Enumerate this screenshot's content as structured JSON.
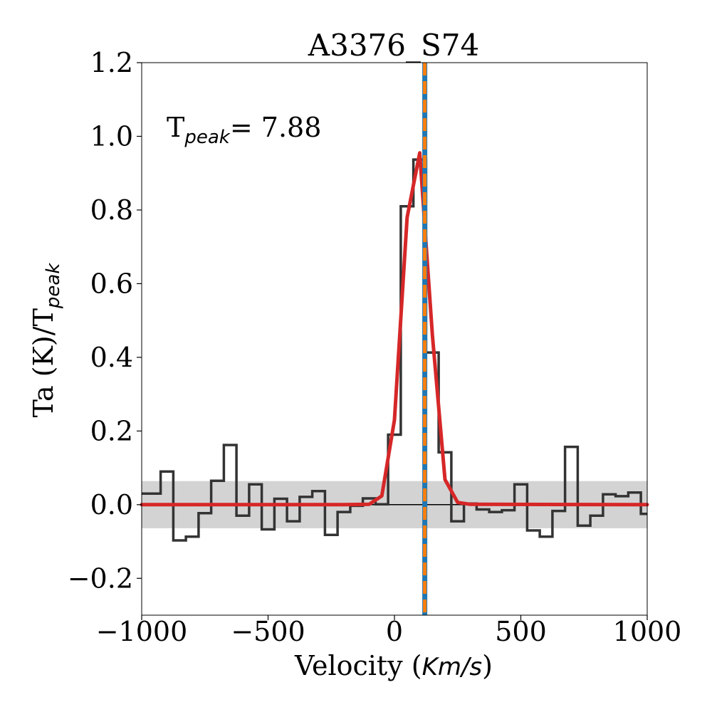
{
  "chart_data": {
    "type": "line",
    "title": "A3376_S74",
    "xlabel": "Velocity",
    "xlabel_unit": "Km/s",
    "ylabel": "Ta (K)/T",
    "ylabel_sub": "peak",
    "annotation": {
      "prefix": "T",
      "sub": "peak",
      "value": "= 7.88"
    },
    "xlim": [
      -1000,
      1000
    ],
    "ylim": [
      -0.3,
      1.2
    ],
    "xticks": [
      -1000,
      -500,
      0,
      500,
      1000
    ],
    "xtick_labels": [
      "−1000",
      "−500",
      "0",
      "500",
      "1000"
    ],
    "yticks": [
      -0.2,
      0.0,
      0.2,
      0.4,
      0.6,
      0.8,
      1.0,
      1.2
    ],
    "ytick_labels": [
      "−0.2",
      "0.0",
      "0.2",
      "0.4",
      "0.6",
      "0.8",
      "1.0",
      "1.2"
    ],
    "rms_band": [
      -0.064,
      0.064
    ],
    "vline_velocity": 120,
    "colors": {
      "spectrum": "#333333",
      "fit": "#d62728",
      "band": "#d3d3d3",
      "vline_solid": "#1f77b4",
      "vline_dashed": "#ff7f0e",
      "zero_line": "#000000"
    },
    "series": [
      {
        "name": "spectrum",
        "style": "steps-mid",
        "x": [
          -1000,
          -950,
          -900,
          -850,
          -800,
          -750,
          -700,
          -650,
          -600,
          -550,
          -500,
          -450,
          -400,
          -350,
          -300,
          -250,
          -200,
          -150,
          -100,
          -50,
          0,
          50,
          100,
          150,
          200,
          250,
          300,
          350,
          400,
          450,
          500,
          550,
          600,
          650,
          700,
          750,
          800,
          850,
          900,
          950,
          1000
        ],
        "y": [
          0.03,
          0.03,
          0.09,
          -0.097,
          -0.087,
          -0.023,
          0.065,
          0.162,
          -0.03,
          0.055,
          -0.067,
          0.016,
          -0.045,
          0.021,
          0.037,
          -0.082,
          -0.02,
          -0.003,
          0.017,
          0.001,
          0.19,
          0.81,
          0.937,
          0.413,
          0.142,
          -0.045,
          0.003,
          -0.013,
          -0.02,
          -0.015,
          0.055,
          -0.07,
          -0.087,
          -0.017,
          0.157,
          -0.057,
          -0.03,
          0.028,
          0.023,
          0.033,
          -0.025
        ]
      },
      {
        "name": "gaussian fit",
        "style": "line",
        "x": [
          -1000,
          -200,
          -100,
          -50,
          0,
          50,
          100,
          150,
          200,
          250,
          300,
          1000
        ],
        "y": [
          0.0,
          0.0,
          0.001,
          0.024,
          0.23,
          0.78,
          0.955,
          0.46,
          0.068,
          0.006,
          0.001,
          0.0
        ]
      }
    ]
  }
}
